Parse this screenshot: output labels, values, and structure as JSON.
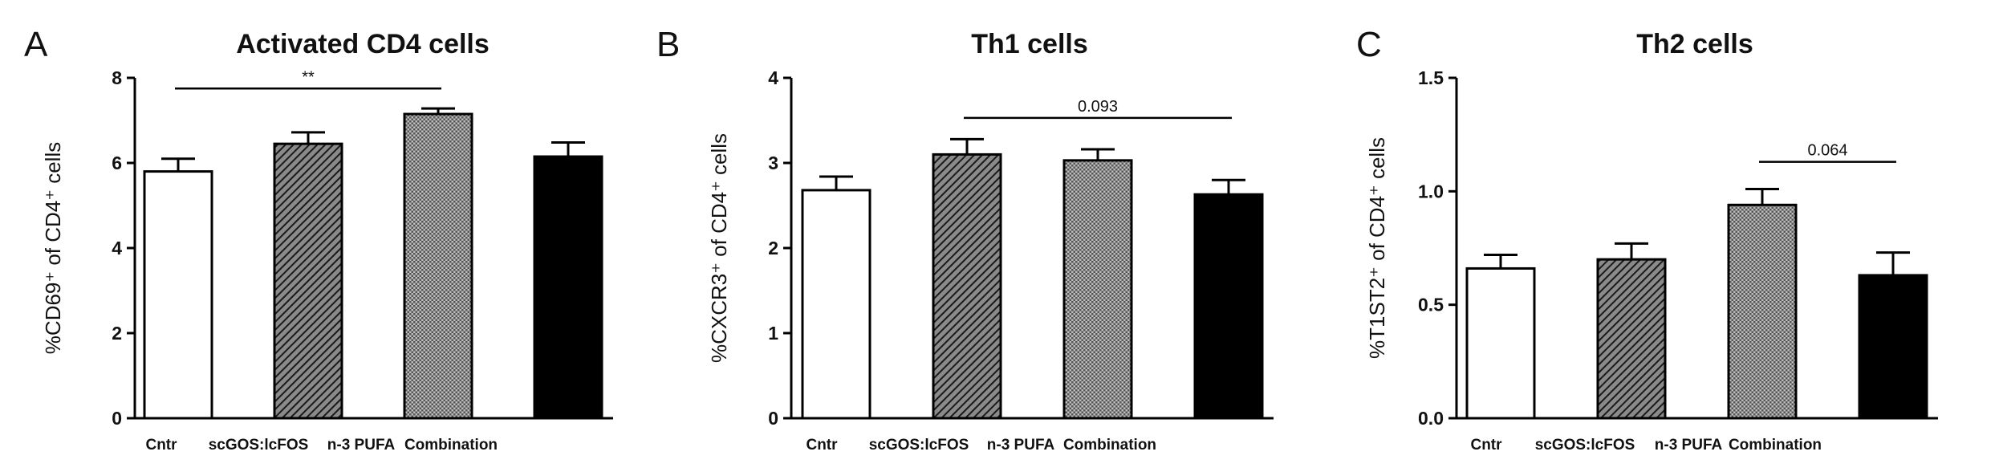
{
  "bar_colors": {
    "Cntr": "#ffffff",
    "scGOS:lcFOS": "#555555",
    "n-3 PUFA": "#9a9a9a",
    "Combination": "#000000"
  },
  "chart_data": [
    {
      "type": "bar",
      "panel": "A",
      "title": "Activated CD4 cells",
      "ylabel": "%CD69⁺ of CD4⁺ cells",
      "categories": [
        "Cntr",
        "scGOS:lcFOS",
        "n-3 PUFA",
        "Combination"
      ],
      "values": [
        5.8,
        6.45,
        7.15,
        6.15
      ],
      "errors": [
        0.3,
        0.27,
        0.13,
        0.33
      ],
      "ylim": [
        0,
        8
      ],
      "yticks": [
        "0",
        "2",
        "4",
        "6",
        "8"
      ],
      "ytick_values": [
        0,
        2,
        4,
        6,
        8
      ],
      "significance": {
        "from": 0,
        "to": 2,
        "label": "**",
        "y": 7.75
      }
    },
    {
      "type": "bar",
      "panel": "B",
      "title": "Th1 cells",
      "ylabel": "%CXCR3⁺ of CD4⁺ cells",
      "categories": [
        "Cntr",
        "scGOS:lcFOS",
        "n-3 PUFA",
        "Combination"
      ],
      "values": [
        2.68,
        3.1,
        3.03,
        2.63
      ],
      "errors": [
        0.16,
        0.18,
        0.13,
        0.17
      ],
      "ylim": [
        0,
        4
      ],
      "yticks": [
        "0",
        "1",
        "2",
        "3",
        "4"
      ],
      "ytick_values": [
        0,
        1,
        2,
        3,
        4
      ],
      "significance": {
        "from": 1,
        "to": 3,
        "label": "0.093",
        "y": 3.53
      }
    },
    {
      "type": "bar",
      "panel": "C",
      "title": "Th2 cells",
      "ylabel": "%T1ST2⁺ of CD4⁺ cells",
      "categories": [
        "Cntr",
        "scGOS:lcFOS",
        "n-3 PUFA",
        "Combination"
      ],
      "values": [
        0.66,
        0.7,
        0.94,
        0.63
      ],
      "errors": [
        0.06,
        0.07,
        0.07,
        0.1
      ],
      "ylim": [
        0,
        1.5
      ],
      "yticks": [
        "0.0",
        "0.5",
        "1.0",
        "1.5"
      ],
      "ytick_values": [
        0,
        0.5,
        1.0,
        1.5
      ],
      "significance": {
        "from": 2,
        "to": 3,
        "label": "0.064",
        "y": 1.13
      }
    }
  ]
}
